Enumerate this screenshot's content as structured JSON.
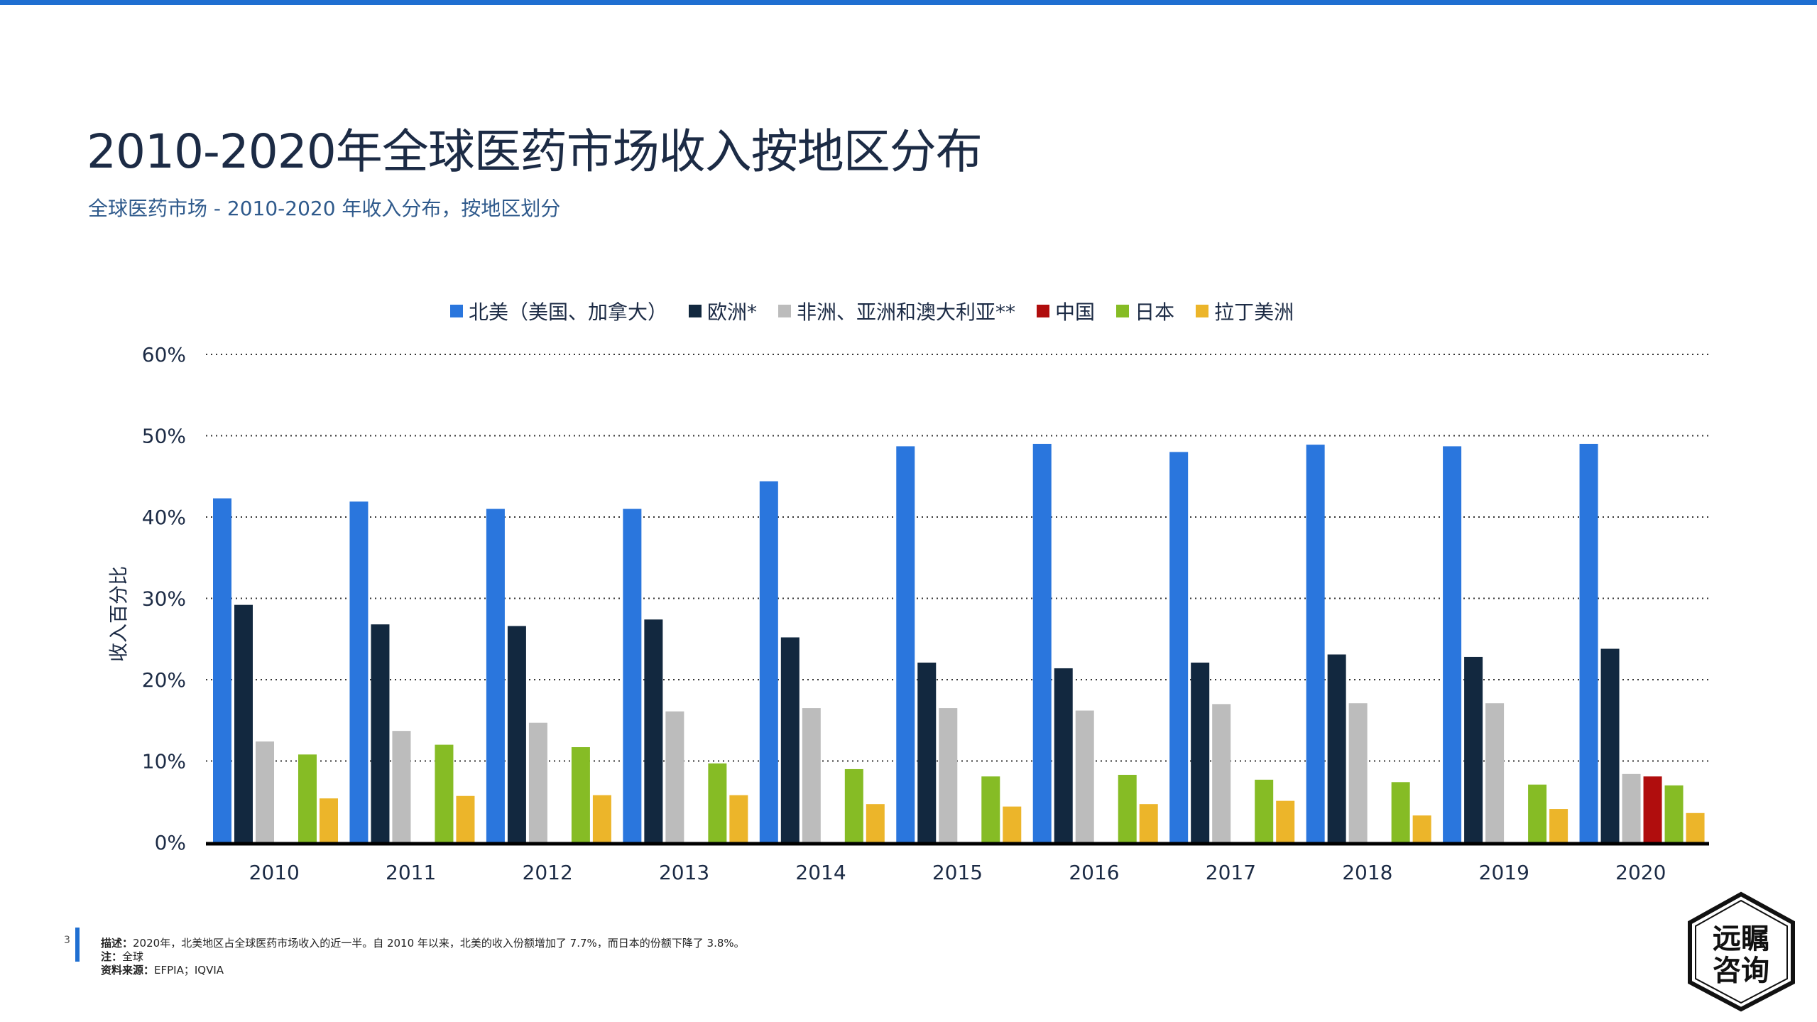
{
  "header": {
    "title": "2010-2020年全球医药市场收入按地区分布",
    "subtitle": "全球医药市场 - 2010-2020 年收入分布，按地区划分"
  },
  "chart_data": {
    "type": "bar",
    "title": "2010-2020年全球医药市场收入按地区分布",
    "xlabel": "",
    "ylabel": "收入百分比",
    "ylim": [
      0,
      60
    ],
    "yticks": [
      "0%",
      "10%",
      "20%",
      "30%",
      "40%",
      "50%",
      "60%"
    ],
    "grid": true,
    "legend_position": "top",
    "categories": [
      "2010",
      "2011",
      "2012",
      "2013",
      "2014",
      "2015",
      "2016",
      "2017",
      "2018",
      "2019",
      "2020"
    ],
    "series": [
      {
        "name": "北美（美国、加拿大）",
        "color": "#2a76dd",
        "values": [
          42.3,
          41.9,
          41.0,
          41.0,
          44.4,
          48.7,
          49.0,
          48.0,
          48.9,
          48.7,
          49.0
        ]
      },
      {
        "name": "欧洲*",
        "color": "#12283f",
        "values": [
          29.2,
          26.8,
          26.6,
          27.4,
          25.2,
          22.1,
          21.4,
          22.1,
          23.1,
          22.8,
          23.8
        ]
      },
      {
        "name": "非洲、亚洲和澳大利亚**",
        "color": "#bcbcbc",
        "values": [
          12.4,
          13.7,
          14.7,
          16.1,
          16.5,
          16.5,
          16.2,
          17.0,
          17.1,
          17.1,
          8.4
        ]
      },
      {
        "name": "中国",
        "color": "#b00d0d",
        "values": [
          null,
          null,
          null,
          null,
          null,
          null,
          null,
          null,
          null,
          null,
          8.1
        ]
      },
      {
        "name": "日本",
        "color": "#86bc25",
        "values": [
          10.8,
          12.0,
          11.7,
          9.7,
          9.0,
          8.1,
          8.3,
          7.7,
          7.4,
          7.1,
          7.0
        ]
      },
      {
        "name": "拉丁美洲",
        "color": "#ecb52a",
        "values": [
          5.4,
          5.7,
          5.8,
          5.8,
          4.7,
          4.4,
          4.7,
          5.1,
          3.3,
          4.1,
          3.6
        ]
      }
    ]
  },
  "footer": {
    "page_number": "3",
    "description_label": "描述：",
    "description": "2020年，北美地区占全球医药市场收入的近一半。自 2010 年以来，北美的收入份额增加了 7.7%，而日本的份额下降了 3.8%。",
    "note_label": "注：",
    "note": "全球",
    "source_label": "资料来源：",
    "source": "EFPIA；IQVIA"
  },
  "logo": {
    "text": "远瞩咨询"
  }
}
